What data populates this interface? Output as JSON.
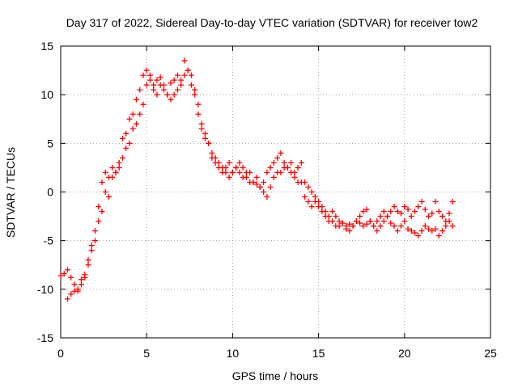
{
  "chart_data": {
    "type": "scatter",
    "title": "Day 317 of 2022, Sidereal Day-to-day VTEC variation (SDTVAR) for receiver tow2",
    "xlabel": "GPS time / hours",
    "ylabel": "SDTVAR / TECUs",
    "xlim": [
      0,
      25
    ],
    "ylim": [
      -15,
      15
    ],
    "xticks": [
      "0",
      "5",
      "10",
      "15",
      "20",
      "25"
    ],
    "yticks": [
      "-15",
      "-10",
      "-5",
      "0",
      "5",
      "10",
      "15"
    ],
    "grid": true,
    "marker": "plus",
    "color": "#ff0000",
    "series": [
      {
        "name": "SDTVAR",
        "x": [
          0.0,
          0.2,
          0.4,
          0.6,
          0.8,
          1.0,
          1.2,
          1.4,
          1.6,
          1.8,
          2.0,
          2.2,
          2.4,
          2.6,
          2.8,
          3.0,
          3.2,
          3.4,
          3.6,
          3.8,
          4.0,
          4.2,
          4.4,
          4.6,
          4.8,
          5.0,
          5.2,
          5.4,
          5.6,
          5.8,
          6.0,
          6.2,
          6.4,
          6.6,
          6.8,
          7.0,
          7.2,
          7.4,
          7.6,
          7.8,
          8.0,
          8.2,
          8.4,
          8.6,
          8.8,
          9.0,
          9.2,
          9.4,
          9.6,
          9.8,
          10.0,
          10.2,
          10.4,
          10.6,
          10.8,
          11.0,
          11.2,
          11.4,
          11.6,
          11.8,
          12.0,
          12.2,
          12.4,
          12.6,
          12.8,
          13.0,
          13.2,
          13.4,
          13.6,
          13.8,
          14.0,
          14.2,
          14.4,
          14.6,
          14.8,
          15.0,
          15.2,
          15.4,
          15.6,
          15.8,
          16.0,
          16.2,
          16.4,
          16.6,
          16.8,
          17.0,
          17.2,
          17.4,
          17.6,
          17.8,
          18.0,
          18.2,
          18.4,
          18.6,
          18.8,
          19.0,
          19.2,
          19.4,
          19.6,
          19.8,
          20.0,
          20.2,
          20.4,
          20.6,
          20.8,
          21.0,
          21.2,
          21.4,
          21.6,
          21.8,
          22.0,
          22.2,
          22.4,
          22.6,
          22.8,
          0.4,
          0.6,
          0.8,
          1.0,
          1.2,
          1.4,
          1.6,
          1.8,
          2.0,
          2.2,
          2.4,
          2.6,
          2.8,
          3.0,
          3.2,
          3.4,
          3.6,
          3.8,
          4.0,
          4.2,
          4.4,
          4.6,
          4.8,
          5.0,
          5.2,
          5.4,
          5.6,
          5.8,
          6.0,
          6.2,
          6.4,
          6.6,
          6.8,
          7.0,
          7.2,
          7.4,
          7.6,
          7.8,
          8.0,
          8.2,
          8.4,
          8.6,
          8.8,
          9.0,
          9.2,
          9.4,
          9.6,
          9.8,
          10.0,
          10.2,
          10.4,
          10.6,
          10.8,
          11.0,
          11.2,
          11.4,
          11.6,
          11.8,
          12.0,
          12.2,
          12.4,
          12.6,
          12.8,
          13.0,
          13.2,
          13.4,
          13.6,
          13.8,
          14.0,
          14.2,
          14.4,
          14.6,
          14.8,
          15.0,
          15.2,
          15.4,
          15.6,
          15.8,
          16.0,
          16.2,
          16.4,
          16.6,
          16.8,
          17.0,
          17.2,
          17.4,
          17.6,
          17.8,
          18.0,
          18.2,
          18.4,
          18.6,
          18.8,
          19.0,
          19.2,
          19.4,
          19.6,
          19.8,
          20.0,
          20.2,
          20.4,
          20.6,
          20.8,
          21.0,
          21.2,
          21.4,
          21.6,
          21.8,
          22.0,
          22.2,
          22.4,
          22.6,
          22.8
        ],
        "y": [
          -8.6,
          -8.4,
          -8.0,
          -8.8,
          -10.2,
          -10.0,
          -9.5,
          -8.8,
          -7.5,
          -5.5,
          -4.0,
          -1.5,
          1.0,
          2.0,
          -0.5,
          1.5,
          2.0,
          3.0,
          5.5,
          6.0,
          7.5,
          8.0,
          9.5,
          10.5,
          12.0,
          12.5,
          12.0,
          11.0,
          11.5,
          11.8,
          11.0,
          10.0,
          11.2,
          11.5,
          12.0,
          11.0,
          13.5,
          12.5,
          11.0,
          10.5,
          8.0,
          6.5,
          6.0,
          5.0,
          4.0,
          3.5,
          3.0,
          2.0,
          2.5,
          3.0,
          2.0,
          2.5,
          3.0,
          2.5,
          1.5,
          2.0,
          1.0,
          1.5,
          0.5,
          1.0,
          2.0,
          2.5,
          3.0,
          3.5,
          4.0,
          3.0,
          2.5,
          2.0,
          1.5,
          2.5,
          3.0,
          1.0,
          0.5,
          0.0,
          -0.5,
          -1.0,
          -1.5,
          -2.0,
          -2.5,
          -2.0,
          -2.5,
          -3.0,
          -3.2,
          -3.5,
          -3.3,
          -3.5,
          -3.0,
          -3.2,
          -3.5,
          -3.3,
          -3.0,
          -3.5,
          -4.0,
          -3.5,
          -3.0,
          -2.5,
          -3.2,
          -3.5,
          -4.0,
          -3.5,
          -3.0,
          -3.8,
          -4.0,
          -4.2,
          -4.5,
          -4.0,
          -3.5,
          -3.8,
          -4.0,
          -3.8,
          -4.5,
          -4.0,
          -3.5,
          -3.0,
          -3.5,
          -11.0,
          -10.5,
          -9.5,
          -10.2,
          -9.0,
          -8.5,
          -7.0,
          -6.0,
          -5.0,
          -3.0,
          -2.0,
          0.0,
          1.5,
          2.5,
          2.0,
          2.5,
          3.5,
          4.5,
          5.0,
          6.5,
          7.0,
          8.0,
          9.0,
          11.0,
          11.5,
          10.5,
          10.0,
          11.0,
          10.5,
          10.0,
          9.5,
          10.0,
          10.5,
          11.5,
          12.0,
          12.5,
          12.0,
          10.0,
          9.0,
          7.0,
          5.5,
          5.0,
          3.5,
          3.0,
          2.5,
          2.5,
          2.0,
          1.5,
          2.0,
          2.5,
          2.0,
          1.5,
          2.0,
          1.0,
          1.0,
          0.8,
          0.5,
          0.0,
          -0.5,
          0.5,
          1.5,
          2.0,
          2.0,
          2.5,
          2.5,
          3.0,
          2.0,
          1.0,
          1.0,
          -0.5,
          -1.0,
          -1.5,
          -1.0,
          -1.5,
          -2.0,
          -2.5,
          -3.0,
          -3.0,
          -3.5,
          -3.5,
          -3.2,
          -3.8,
          -4.0,
          -3.5,
          -3.0,
          -2.5,
          -2.0,
          -1.8,
          -3.0,
          -3.5,
          -3.0,
          -2.5,
          -2.0,
          -2.5,
          -2.0,
          -1.5,
          -2.0,
          -2.2,
          -1.5,
          -1.8,
          -2.5,
          -2.0,
          -1.5,
          -1.0,
          -1.8,
          -2.5,
          -2.2,
          -1.0,
          -2.0,
          -2.5,
          -3.0,
          -2.2,
          -1.0
        ]
      }
    ]
  }
}
